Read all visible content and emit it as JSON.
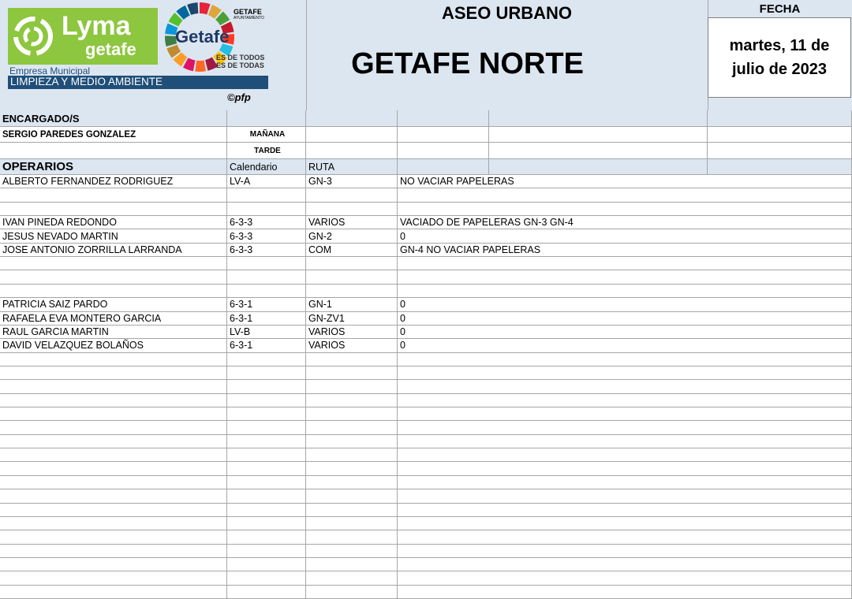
{
  "header": {
    "logo": {
      "brand": "Lyma",
      "brand_sub": "getafe",
      "company": "Empresa Municipal",
      "department": "LIMPIEZA Y MEDIO AMBIENTE",
      "city": "Getafe",
      "council": "GETAFE",
      "council_sub": "AYUNTAMIENTO",
      "motto": [
        "ES DE TODOS",
        "ES DE TODAS"
      ],
      "credit": "©pfp"
    },
    "service": "ASEO URBANO",
    "zone": "GETAFE NORTE",
    "date_label": "FECHA",
    "date": "martes, 11 de julio de 2023"
  },
  "supervisors": {
    "label": "ENCARGADO/S",
    "name": "SERGIO PAREDES GONZALEZ",
    "shifts": [
      "MAÑANA",
      "TARDE"
    ]
  },
  "workers": {
    "label": "OPERARIOS",
    "columns": [
      "Calendario",
      "RUTA"
    ],
    "rows": [
      [
        "ALBERTO FERNANDEZ RODRIGUEZ",
        "LV-A",
        "GN-3",
        "NO VACIAR PAPELERAS"
      ],
      null,
      null,
      [
        "IVAN PINEDA REDONDO",
        "6-3-3",
        "VARIOS",
        "VACIADO DE PAPELERAS GN-3 GN-4"
      ],
      [
        "JESUS NEVADO MARTIN",
        "6-3-3",
        "GN-2",
        "0"
      ],
      [
        "JOSE ANTONIO ZORRILLA LARRANDA",
        "6-3-3",
        "COM",
        "GN-4 NO VACIAR PAPELERAS"
      ],
      null,
      null,
      null,
      [
        "PATRICIA SAIZ PARDO",
        "6-3-1",
        "GN-1",
        "0"
      ],
      [
        "RAFAELA EVA MONTERO GARCIA",
        "6-3-1",
        "GN-ZV1",
        "0"
      ],
      [
        "RAUL GARCIA MARTIN",
        "LV-B",
        "VARIOS",
        "0"
      ],
      [
        "DAVID VELAZQUEZ BOLAÑOS",
        "6-3-1",
        "VARIOS",
        "0"
      ],
      null,
      null,
      null,
      null,
      null,
      null,
      null,
      null,
      null,
      null,
      null,
      null,
      null,
      null,
      null,
      null,
      null,
      null
    ]
  }
}
